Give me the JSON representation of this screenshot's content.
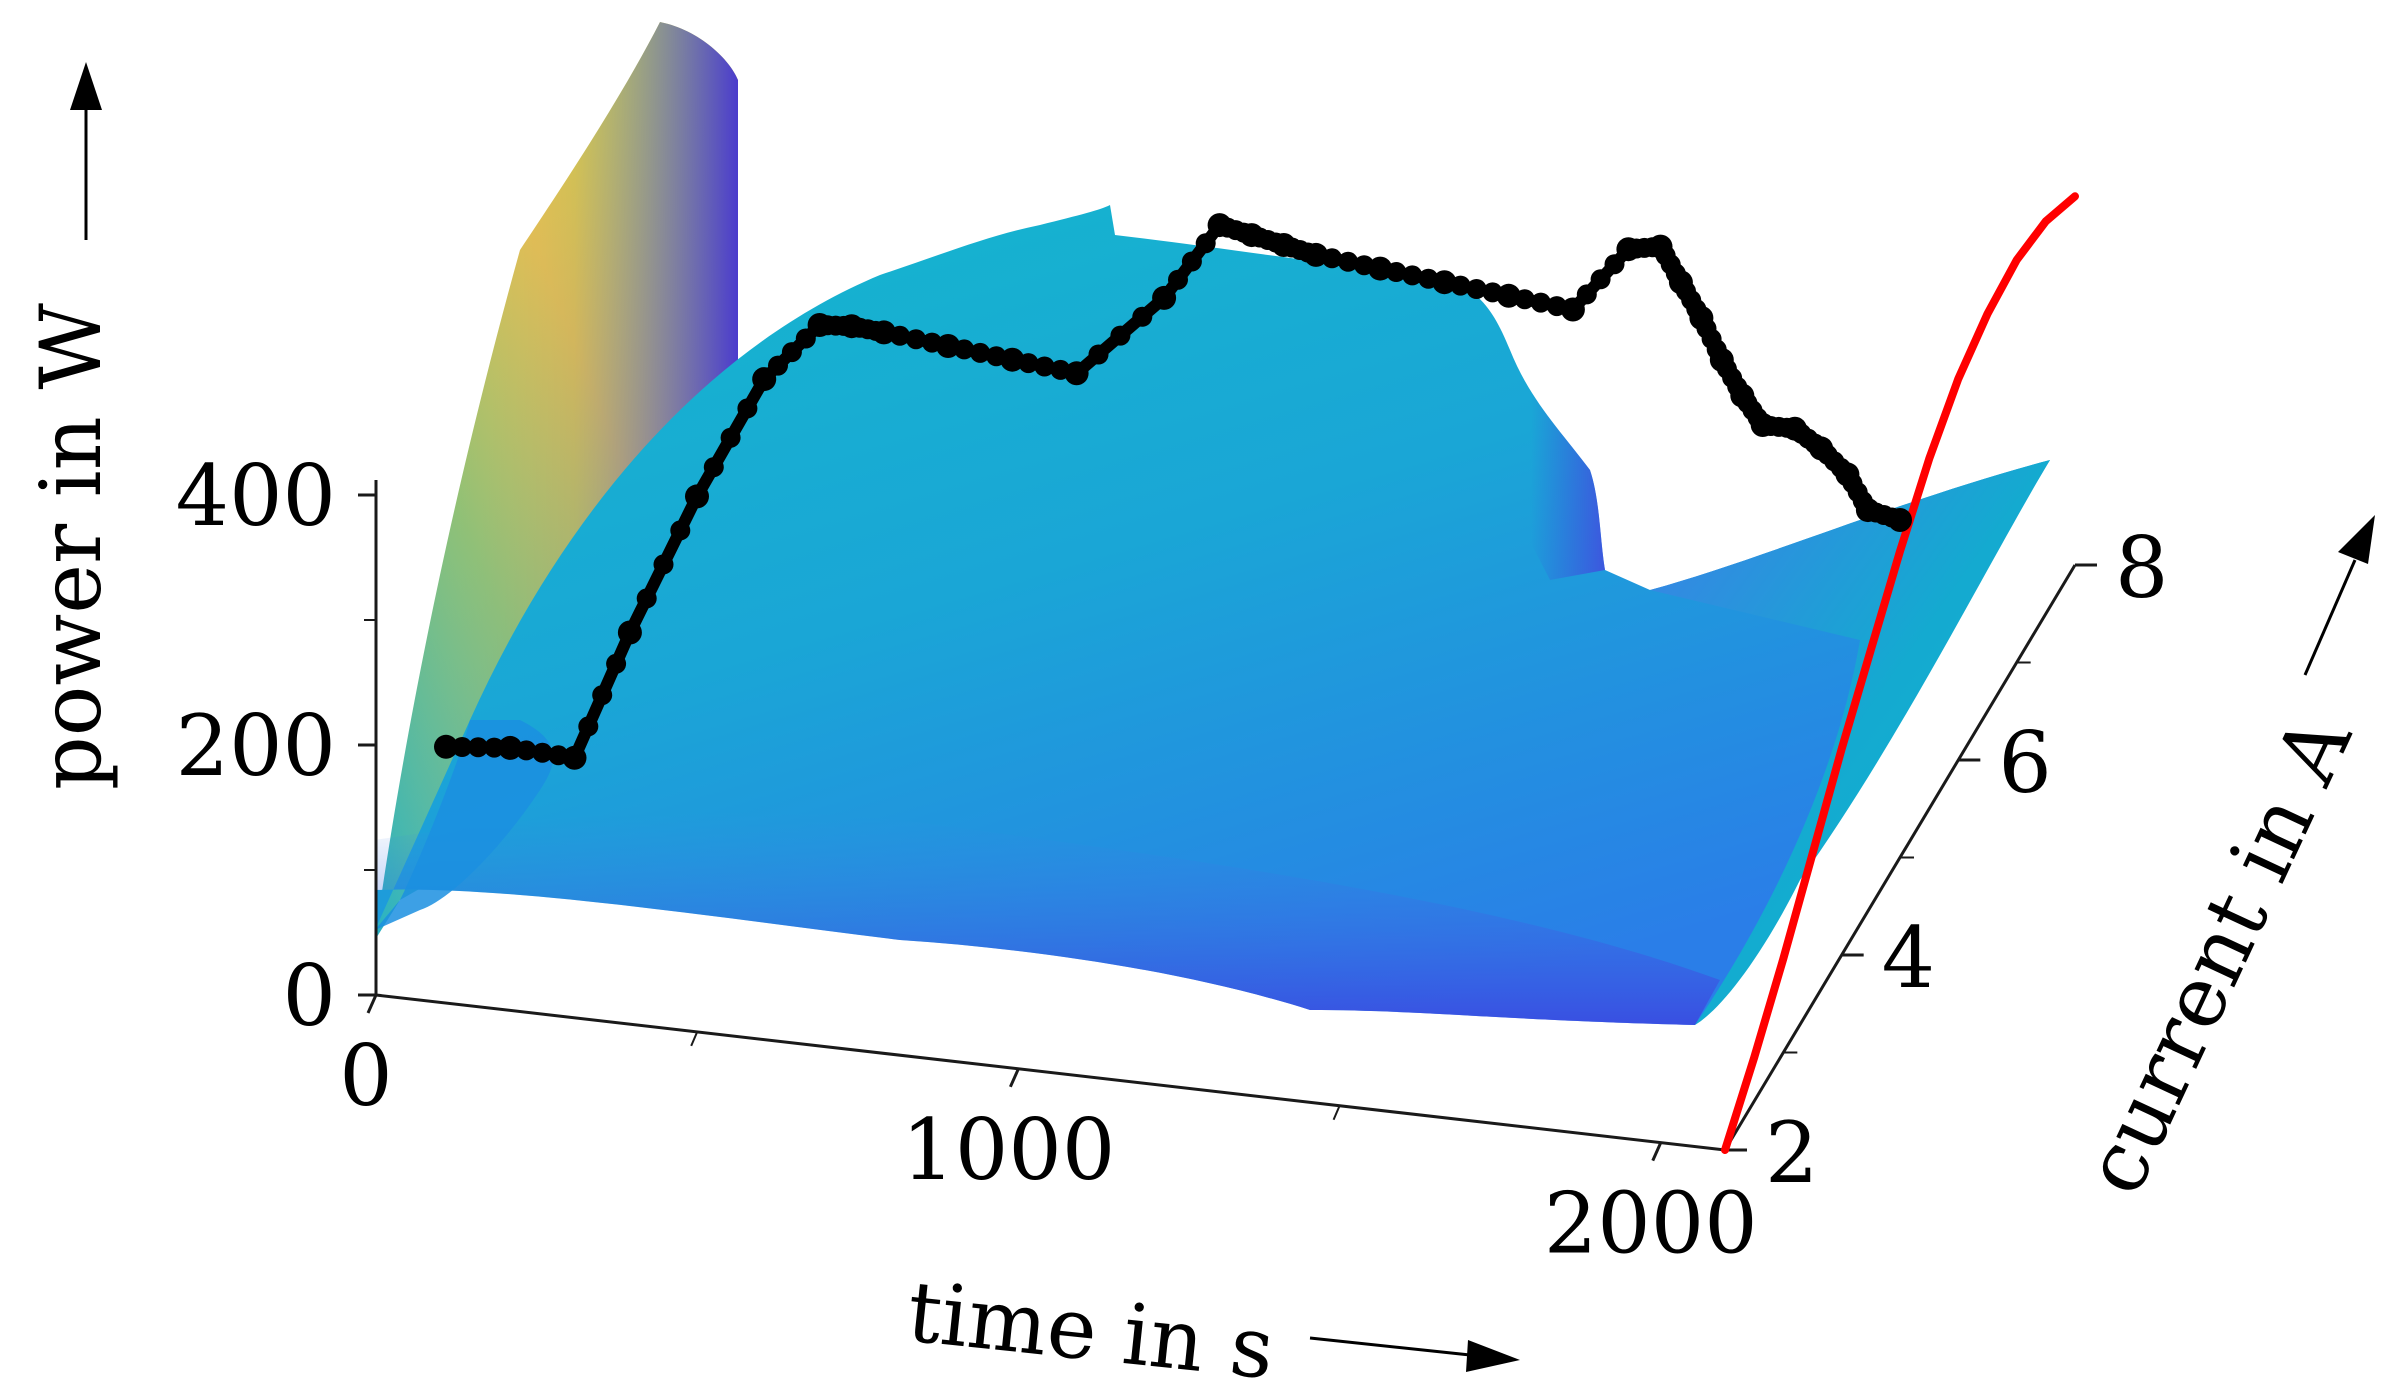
{
  "chart_data": {
    "type": "surface3d",
    "xlabel": "time in s",
    "ylabel": "current in A",
    "zlabel": "power in W",
    "xlim": [
      0,
      2100
    ],
    "ylim": [
      2,
      8
    ],
    "zlim": [
      0,
      400
    ],
    "x_ticks": [
      0,
      1000,
      2000
    ],
    "y_ticks": [
      2,
      4,
      6,
      8
    ],
    "z_ticks": [
      0,
      200,
      400
    ],
    "colormap": "parula",
    "colors": {
      "surface_low": "#3d3fe0",
      "surface_mid": "#12b5cc",
      "surface_high": "#f9fa14",
      "measured_power": "#000000",
      "power_curve_at_t_max": "#ff0000"
    },
    "series": [
      {
        "marker": "filled-circle",
        "x": [
          0,
          100,
          200,
          250,
          300,
          350,
          400,
          450,
          500,
          600,
          700,
          800,
          900,
          950,
          1000,
          1050,
          1100,
          1200,
          1300,
          1400,
          1500,
          1550,
          1600,
          1650,
          1700,
          1750,
          1800,
          1850,
          1900,
          1950,
          2000,
          2050,
          2100
        ],
        "y": [
          3.2,
          3.2,
          3.2,
          3.6,
          4.2,
          4.8,
          5.2,
          5.2,
          5.2,
          5.2,
          5.2,
          5.2,
          5.6,
          6.0,
          6.0,
          6.0,
          6.0,
          6.0,
          6.0,
          6.0,
          6.0,
          6.4,
          6.4,
          6.2,
          6.0,
          5.8,
          5.6,
          5.4,
          5.4,
          5.3,
          5.2,
          5.0,
          5.0
        ],
        "z": [
          105,
          110,
          108,
          180,
          245,
          295,
          310,
          312,
          310,
          305,
          300,
          295,
          330,
          360,
          355,
          350,
          345,
          340,
          335,
          330,
          325,
          345,
          350,
          340,
          330,
          315,
          305,
          300,
          300,
          295,
          285,
          275,
          270
        ]
      },
      {
        "y": [
          2.0,
          2.5,
          3.0,
          3.5,
          4.0,
          4.5,
          5.0,
          5.5,
          6.0,
          6.5,
          7.0,
          7.5,
          8.0
        ],
        "x": [
          2100,
          2100,
          2100,
          2100,
          2100,
          2100,
          2100,
          2100,
          2100,
          2100,
          2100,
          2100,
          2100
        ],
        "z": [
          0,
          35,
          75,
          120,
          165,
          205,
          245,
          280,
          305,
          318,
          322,
          314,
          295
        ]
      }
    ]
  }
}
